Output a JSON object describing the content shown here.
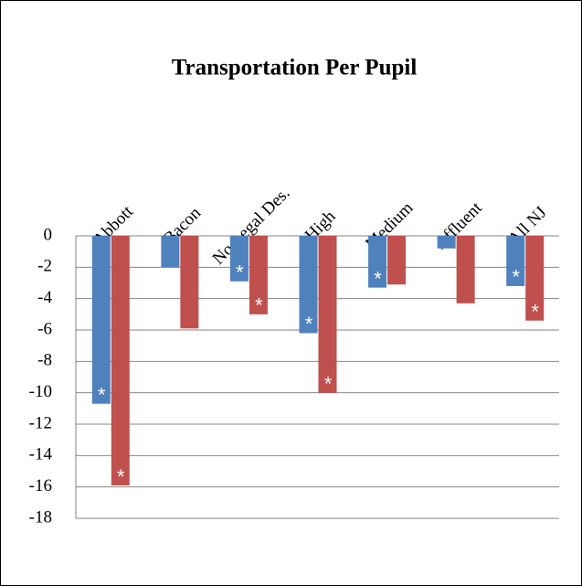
{
  "chart_data": {
    "type": "bar",
    "title": "Transportation Per Pupil",
    "categories": [
      "Abbott",
      "Bacon",
      "No Legal Des.",
      "High",
      "Medium",
      "Affluent",
      "All NJ"
    ],
    "series": [
      {
        "color": "#4f81bd",
        "values": [
          -10.7,
          -2.0,
          -2.9,
          -6.2,
          -3.3,
          -0.8,
          -3.2
        ],
        "markers": [
          "*",
          null,
          "*",
          "*",
          "*",
          null,
          "*"
        ]
      },
      {
        "color": "#c0504d",
        "values": [
          -15.9,
          -5.9,
          -5.0,
          -10.0,
          -3.1,
          -4.3,
          -5.4
        ],
        "markers": [
          "*",
          null,
          "*",
          "*",
          null,
          null,
          "*"
        ]
      }
    ],
    "ylim": [
      -18,
      0
    ],
    "yticks": [
      0,
      -2,
      -4,
      -6,
      -8,
      -10,
      -12,
      -14,
      -16,
      -18
    ],
    "grid": true
  }
}
